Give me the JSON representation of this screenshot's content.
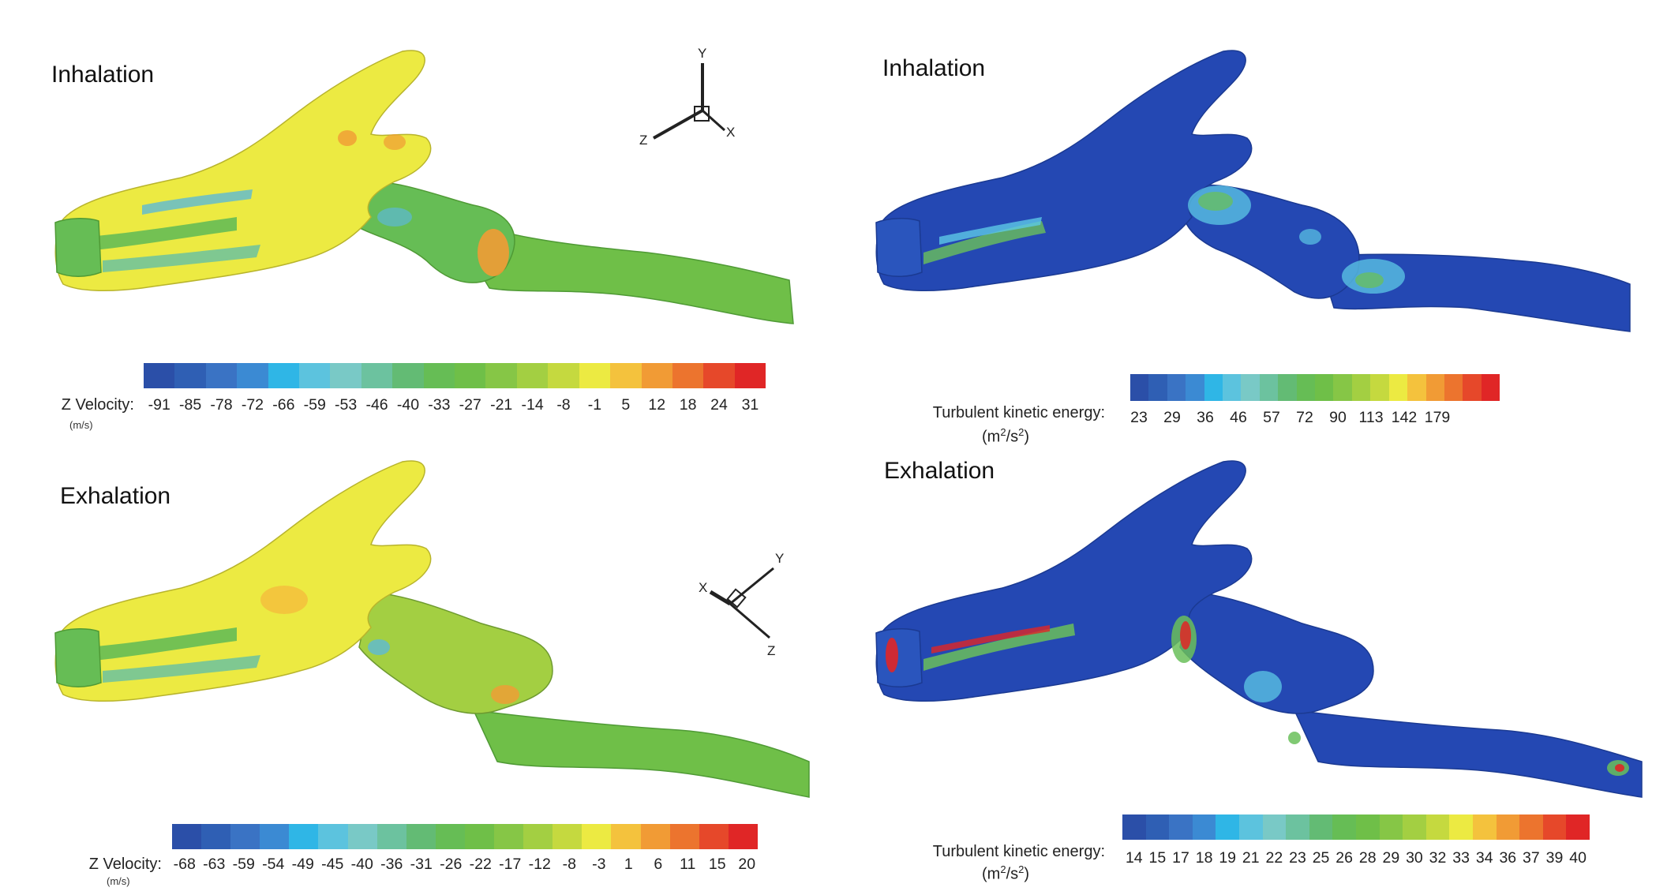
{
  "panels": {
    "top_left": {
      "title": "Inhalation",
      "colorbar": {
        "label": "Z Velocity:",
        "unit": "(m/s)",
        "ticks": [
          "-91",
          "-85",
          "-78",
          "-72",
          "-66",
          "-59",
          "-53",
          "-46",
          "-40",
          "-33",
          "-27",
          "-21",
          "-14",
          "-8",
          "-1",
          "5",
          "12",
          "18",
          "24",
          "31"
        ]
      },
      "axes": {
        "y": "Y",
        "z": "Z",
        "x": "X"
      }
    },
    "top_right": {
      "title": "Inhalation",
      "colorbar": {
        "label": "Turbulent kinetic energy:",
        "unit_base": "(m",
        "unit_sup1": "2",
        "unit_mid": "/s",
        "unit_sup2": "2",
        "unit_end": ")",
        "ticks": [
          "23",
          "29",
          "36",
          "46",
          "57",
          "72",
          "90",
          "113",
          "142",
          "179"
        ]
      }
    },
    "bottom_left": {
      "title": "Exhalation",
      "colorbar": {
        "label": "Z Velocity:",
        "unit": "(m/s)",
        "ticks": [
          "-68",
          "-63",
          "-59",
          "-54",
          "-49",
          "-45",
          "-40",
          "-36",
          "-31",
          "-26",
          "-22",
          "-17",
          "-12",
          "-8",
          "-3",
          "1",
          "6",
          "11",
          "15",
          "20"
        ]
      },
      "axes": {
        "y": "Y",
        "z": "Z",
        "x": "X"
      }
    },
    "bottom_right": {
      "title": "Exhalation",
      "colorbar": {
        "label": "Turbulent kinetic energy:",
        "unit_base": "(m",
        "unit_sup1": "2",
        "unit_mid": "/s",
        "unit_sup2": "2",
        "unit_end": ")",
        "ticks": [
          "14",
          "15",
          "17",
          "18",
          "19",
          "21",
          "22",
          "23",
          "25",
          "26",
          "28",
          "29",
          "30",
          "32",
          "33",
          "34",
          "36",
          "37",
          "39",
          "40"
        ]
      }
    }
  },
  "colors": {
    "colormap": [
      "#2b4fa8",
      "#2f5fb4",
      "#3a73c4",
      "#3b8ad3",
      "#2fb6e6",
      "#5cc3de",
      "#79c9c6",
      "#6cc29f",
      "#63bb74",
      "#66bd55",
      "#6fbf48",
      "#86c646",
      "#a3cf42",
      "#c5d93f",
      "#ecea42",
      "#f4c23d",
      "#f19b35",
      "#ec742e",
      "#e6482a",
      "#e02626"
    ],
    "velocity_base": "#6fbf48",
    "velocity_yellow": "#ecea42",
    "velocity_orange": "#f19b35",
    "velocity_blue": "#5cb9d6",
    "tke_base": "#2448b3",
    "tke_cyan": "#5cc8e6",
    "tke_green": "#6ac05a",
    "tke_red": "#e02626"
  }
}
